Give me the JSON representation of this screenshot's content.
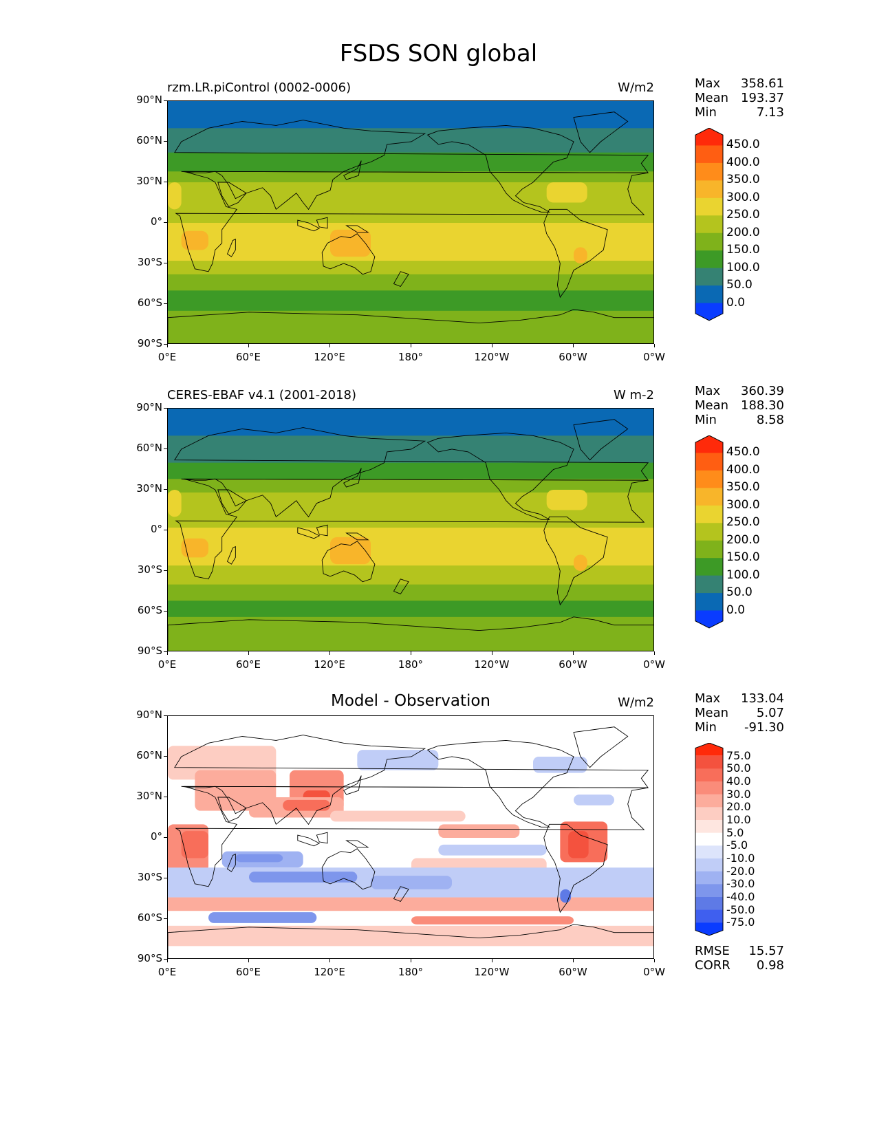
{
  "figure": {
    "title": "FSDS SON global"
  },
  "axes": {
    "lat_ticks": [
      "90°N",
      "60°N",
      "30°N",
      "0°",
      "30°S",
      "60°S",
      "90°S"
    ],
    "lon_ticks": [
      "0°E",
      "60°E",
      "120°E",
      "180°",
      "120°W",
      "60°W",
      "0°W"
    ]
  },
  "panels": [
    {
      "title": "rzm.LR.piControl (0002-0006)",
      "title_position": "left",
      "units": "W/m2",
      "stats": [
        {
          "label": "Max",
          "value": "358.61"
        },
        {
          "label": "Mean",
          "value": "193.37"
        },
        {
          "label": "Min",
          "value": "7.13"
        }
      ],
      "colorbar": {
        "labels": [
          "450.0",
          "400.0",
          "350.0",
          "300.0",
          "250.0",
          "200.0",
          "150.0",
          "100.0",
          "50.0",
          "0.0"
        ],
        "colors": [
          "#ff2a0a",
          "#ff5e12",
          "#ff8c1a",
          "#f8b52a",
          "#ead430",
          "#b4c41e",
          "#7fb21b",
          "#3d9a26",
          "#358273",
          "#0a69b4",
          "#0a3cff"
        ]
      }
    },
    {
      "title": "CERES-EBAF v4.1 (2001-2018)",
      "title_position": "left",
      "units": "W m-2",
      "stats": [
        {
          "label": "Max",
          "value": "360.39"
        },
        {
          "label": "Mean",
          "value": "188.30"
        },
        {
          "label": "Min",
          "value": "8.58"
        }
      ],
      "colorbar": {
        "labels": [
          "450.0",
          "400.0",
          "350.0",
          "300.0",
          "250.0",
          "200.0",
          "150.0",
          "100.0",
          "50.0",
          "0.0"
        ],
        "colors": [
          "#ff2a0a",
          "#ff5e12",
          "#ff8c1a",
          "#f8b52a",
          "#ead430",
          "#b4c41e",
          "#7fb21b",
          "#3d9a26",
          "#358273",
          "#0a69b4",
          "#0a3cff"
        ]
      }
    },
    {
      "title": "Model - Observation",
      "title_position": "center",
      "units": "W/m2",
      "stats": [
        {
          "label": "Max",
          "value": "133.04"
        },
        {
          "label": "Mean",
          "value": "5.07"
        },
        {
          "label": "Min",
          "value": "-91.30"
        }
      ],
      "extra_stats": [
        {
          "label": "RMSE",
          "value": "15.57"
        },
        {
          "label": "CORR",
          "value": "0.98"
        }
      ],
      "colorbar": {
        "labels": [
          "75.0",
          "50.0",
          "40.0",
          "30.0",
          "20.0",
          "10.0",
          "5.0",
          "-5.0",
          "-10.0",
          "-20.0",
          "-30.0",
          "-40.0",
          "-50.0",
          "-75.0"
        ],
        "colors": [
          "#ff2a0a",
          "#f4523e",
          "#f86e5a",
          "#fa8c7a",
          "#fcac9c",
          "#fdcdc2",
          "#fee6e0",
          "#ffffff",
          "#dde4fb",
          "#c0cdf7",
          "#9fb2f2",
          "#7e96ec",
          "#5e7ae6",
          "#3f5fef",
          "#0a3cff"
        ]
      }
    }
  ]
}
